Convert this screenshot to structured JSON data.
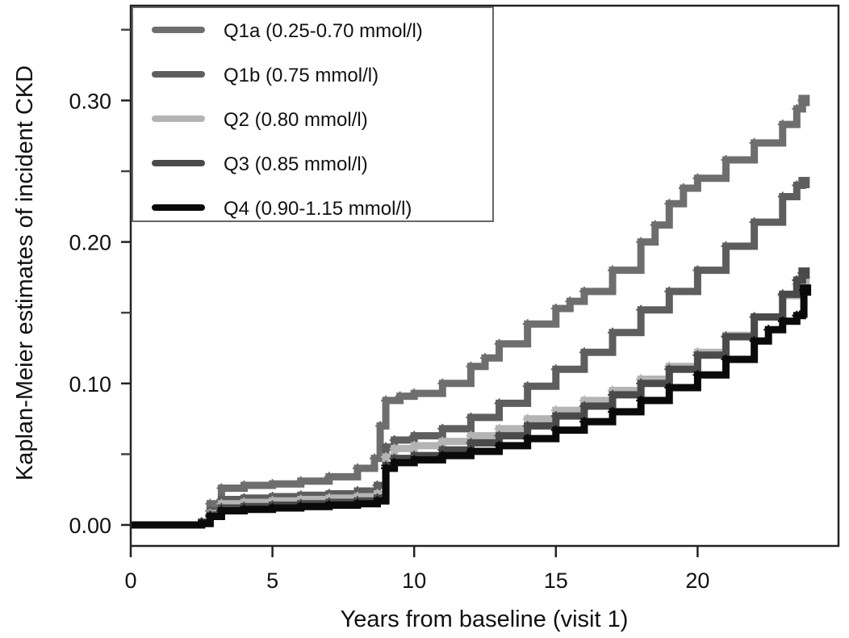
{
  "chart_data": {
    "type": "line",
    "title": "",
    "xlabel": "Years from baseline (visit 1)",
    "ylabel": "Kaplan-Meier estimates of incident CKD",
    "xlim": [
      0,
      25
    ],
    "ylim": [
      -0.015,
      0.365
    ],
    "x_ticks": [
      0,
      5,
      10,
      15,
      20
    ],
    "x_tick_labels": [
      "0",
      "5",
      "10",
      "15",
      "20"
    ],
    "y_ticks": [
      0.0,
      0.1,
      0.2,
      0.3
    ],
    "y_tick_labels": [
      "0.00",
      "0.10",
      "0.20",
      "0.30"
    ],
    "y_minor_ticks": [
      0.05,
      0.15,
      0.25,
      0.35
    ],
    "grid": false,
    "legend_position": "top-left",
    "series": [
      {
        "name": "Q1a (0.25-0.70 mmol/l)",
        "color": "#6e6e6e",
        "x": [
          0,
          2.5,
          2.8,
          3.2,
          4,
          5,
          6,
          7,
          8,
          8.6,
          8.8,
          9.0,
          9.5,
          10,
          11,
          12,
          12.5,
          13,
          14,
          15,
          15.5,
          16,
          17,
          18,
          18.5,
          19,
          19.5,
          20,
          21,
          22,
          23,
          23.5,
          23.7
        ],
        "y": [
          0.0,
          0.002,
          0.015,
          0.026,
          0.028,
          0.029,
          0.031,
          0.034,
          0.04,
          0.047,
          0.07,
          0.088,
          0.091,
          0.093,
          0.1,
          0.112,
          0.118,
          0.128,
          0.142,
          0.153,
          0.158,
          0.165,
          0.18,
          0.2,
          0.212,
          0.227,
          0.238,
          0.245,
          0.258,
          0.27,
          0.283,
          0.294,
          0.3
        ]
      },
      {
        "name": "Q1b (0.75 mmol/l)",
        "color": "#5e5e5e",
        "x": [
          0,
          2.5,
          2.8,
          3.2,
          4,
          5,
          6,
          7,
          8,
          8.7,
          9.0,
          9.3,
          10,
          11,
          12,
          13,
          14,
          15,
          16,
          17,
          18,
          19,
          20,
          21,
          22,
          23,
          23.5,
          23.7
        ],
        "y": [
          0.0,
          0.002,
          0.01,
          0.018,
          0.019,
          0.02,
          0.021,
          0.022,
          0.024,
          0.028,
          0.055,
          0.06,
          0.063,
          0.068,
          0.076,
          0.086,
          0.098,
          0.11,
          0.122,
          0.136,
          0.152,
          0.165,
          0.18,
          0.197,
          0.214,
          0.232,
          0.24,
          0.242
        ]
      },
      {
        "name": "Q2 (0.80 mmol/l)",
        "color": "#b4b4b4",
        "x": [
          0,
          2.5,
          2.8,
          3.2,
          4,
          5,
          6,
          7,
          8,
          8.7,
          9.0,
          9.3,
          10,
          11,
          12,
          13,
          14,
          15,
          16,
          17,
          18,
          19,
          20,
          21,
          22,
          23,
          23.5,
          23.7
        ],
        "y": [
          0.0,
          0.002,
          0.008,
          0.015,
          0.016,
          0.017,
          0.018,
          0.019,
          0.02,
          0.022,
          0.048,
          0.054,
          0.056,
          0.059,
          0.063,
          0.068,
          0.075,
          0.081,
          0.088,
          0.095,
          0.103,
          0.112,
          0.122,
          0.134,
          0.147,
          0.162,
          0.17,
          0.172
        ]
      },
      {
        "name": "Q3 (0.85 mmol/l)",
        "color": "#4a4a4a",
        "x": [
          0,
          2.5,
          2.8,
          3.2,
          4,
          5,
          6,
          7,
          8,
          8.7,
          9.0,
          9.3,
          10,
          11,
          12,
          13,
          14,
          15,
          16,
          17,
          18,
          19,
          20,
          21,
          22,
          23,
          23.5,
          23.7
        ],
        "y": [
          0.0,
          0.002,
          0.007,
          0.012,
          0.013,
          0.014,
          0.015,
          0.016,
          0.017,
          0.019,
          0.042,
          0.047,
          0.049,
          0.053,
          0.058,
          0.063,
          0.07,
          0.077,
          0.084,
          0.092,
          0.1,
          0.11,
          0.12,
          0.133,
          0.147,
          0.163,
          0.173,
          0.178
        ]
      },
      {
        "name": "Q4 (0.90-1.15 mmol/l)",
        "color": "#0a0a0a",
        "x": [
          0,
          2.5,
          2.8,
          3.2,
          4,
          5,
          6,
          7,
          8,
          8.7,
          9.0,
          9.3,
          10,
          11,
          12,
          13,
          14,
          15,
          16,
          17,
          18,
          19,
          20,
          21,
          22,
          22.5,
          23,
          23.5,
          23.7,
          23.75
        ],
        "y": [
          0.0,
          0.001,
          0.006,
          0.01,
          0.011,
          0.012,
          0.013,
          0.014,
          0.015,
          0.017,
          0.04,
          0.044,
          0.046,
          0.049,
          0.052,
          0.056,
          0.061,
          0.067,
          0.073,
          0.08,
          0.088,
          0.097,
          0.106,
          0.117,
          0.13,
          0.138,
          0.144,
          0.148,
          0.149,
          0.166
        ]
      }
    ]
  }
}
